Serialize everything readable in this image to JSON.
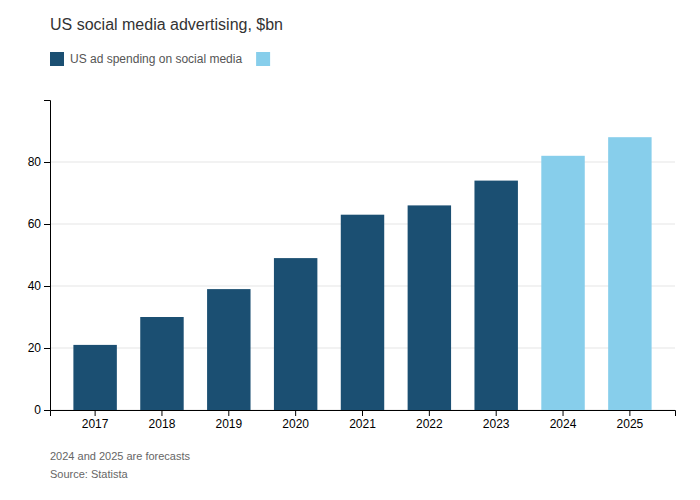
{
  "chart_data": {
    "type": "bar",
    "title": "US social media advertising, $bn",
    "categories": [
      "2017",
      "2018",
      "2019",
      "2020",
      "2021",
      "2022",
      "2023",
      "2024",
      "2025"
    ],
    "series": [
      {
        "name": "US ad spending on social media",
        "color": "#1b4f72",
        "colors": [
          "#1b4f72",
          "#1b4f72",
          "#1b4f72",
          "#1b4f72",
          "#1b4f72",
          "#1b4f72",
          "#1b4f72",
          "#87ceeb",
          "#87ceeb"
        ],
        "values": [
          21,
          30,
          39,
          49,
          63,
          66,
          74,
          82,
          88
        ]
      }
    ],
    "ylim": [
      0,
      100
    ],
    "yticks": [
      0,
      20,
      40,
      60,
      80
    ],
    "grid": true,
    "legend": "top-left",
    "annotations": [
      "2024 and 2025 are forecasts",
      "Source: Statista"
    ]
  }
}
